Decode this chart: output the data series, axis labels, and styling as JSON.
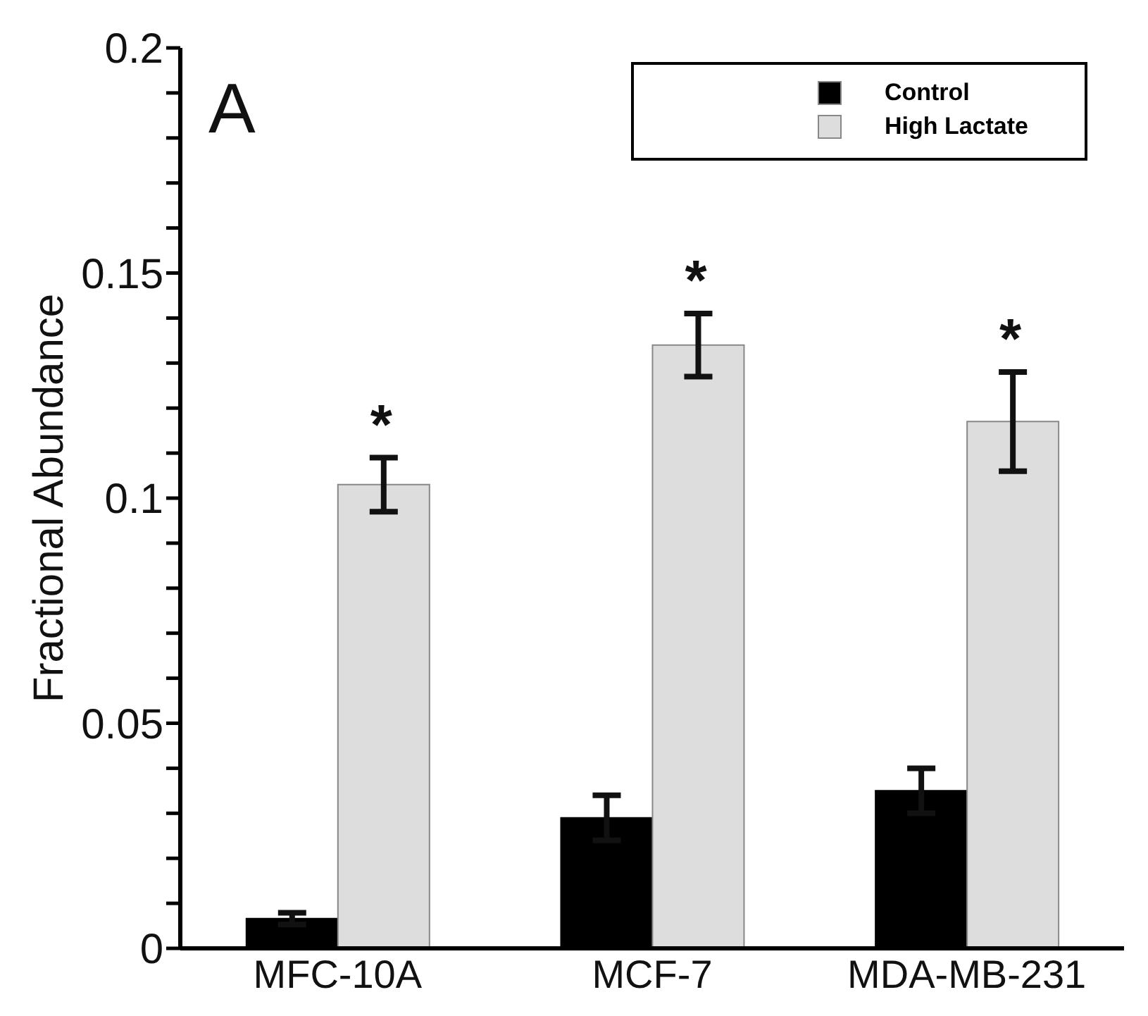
{
  "chart_data": {
    "type": "bar",
    "ylabel": "Fractional Abundance",
    "categories": [
      "MFC-10A",
      "MCF-7",
      "MDA-MB-231"
    ],
    "series": [
      {
        "name": "Control",
        "color": "#000000",
        "values": [
          0.0066,
          0.029,
          0.035
        ],
        "errors": [
          0.0013,
          0.005,
          0.005
        ]
      },
      {
        "name": "High Lactate",
        "color": "#dcdddc",
        "values": [
          0.103,
          0.134,
          0.117
        ],
        "errors": [
          0.006,
          0.007,
          0.011
        ]
      }
    ],
    "ylim": [
      0,
      0.2
    ],
    "yticks": [
      0,
      {
        "value": 0.01,
        "label": null
      },
      {
        "value": 0.02,
        "label": null
      },
      {
        "value": 0.03,
        "label": null
      },
      {
        "value": 0.04,
        "label": null
      },
      0.05,
      {
        "value": 0.06,
        "label": null
      },
      {
        "value": 0.07,
        "label": null
      },
      {
        "value": 0.08,
        "label": null
      },
      {
        "value": 0.09,
        "label": null
      },
      0.1,
      {
        "value": 0.11,
        "label": null
      },
      {
        "value": 0.12,
        "label": null
      },
      {
        "value": 0.13,
        "label": null
      },
      {
        "value": 0.14,
        "label": null
      },
      0.15,
      {
        "value": 0.16,
        "label": null
      },
      {
        "value": 0.17,
        "label": null
      },
      {
        "value": 0.18,
        "label": null
      },
      {
        "value": 0.19,
        "label": null
      },
      0.2
    ],
    "legend": "top right",
    "grid": false,
    "annotations": [
      "A",
      {
        "text": "*",
        "x": "MFC-10A",
        "y": 0.103
      },
      {
        "text": "*",
        "x": "MCF-7",
        "y": 0.134
      },
      {
        "text": "*",
        "x": "MDA-MB-231",
        "y": 0.117
      }
    ]
  }
}
